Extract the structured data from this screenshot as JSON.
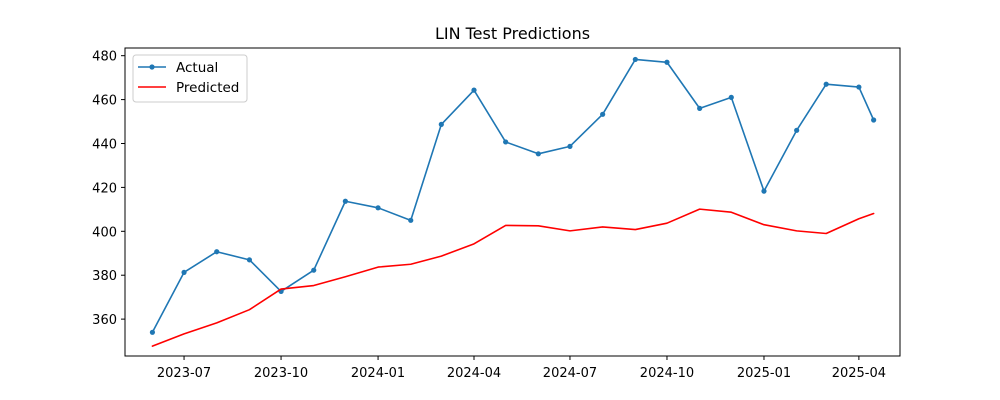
{
  "chart_data": {
    "type": "line",
    "title": "LIN Test Predictions",
    "xlabel": "",
    "ylabel": "",
    "x": [
      "2023-06-01",
      "2023-07-01",
      "2023-08-01",
      "2023-09-01",
      "2023-10-01",
      "2023-11-01",
      "2023-12-01",
      "2024-01-01",
      "2024-02-01",
      "2024-03-01",
      "2024-04-01",
      "2024-05-01",
      "2024-06-01",
      "2024-07-01",
      "2024-08-01",
      "2024-09-01",
      "2024-10-01",
      "2024-11-01",
      "2024-12-01",
      "2025-01-01",
      "2025-02-01",
      "2025-03-01",
      "2025-04-01",
      "2025-04-15"
    ],
    "series": [
      {
        "name": "Actual",
        "color": "#1f77b4",
        "marker": "dot",
        "values": [
          354.0,
          381.3,
          390.7,
          387.0,
          372.6,
          382.3,
          413.7,
          410.7,
          405.0,
          448.7,
          464.3,
          440.7,
          435.3,
          438.7,
          453.3,
          478.3,
          477.0,
          456.0,
          461.0,
          418.3,
          446.0,
          467.0,
          465.7,
          450.7
        ]
      },
      {
        "name": "Predicted",
        "color": "#ff0000",
        "marker": "none",
        "values": [
          347.7,
          353.3,
          358.3,
          364.3,
          373.7,
          375.3,
          379.3,
          383.7,
          385.0,
          388.7,
          394.3,
          402.7,
          402.5,
          400.2,
          402.0,
          400.8,
          403.7,
          410.1,
          408.7,
          403.0,
          400.2,
          399.0,
          405.7,
          408.1
        ]
      }
    ],
    "x_ticks": [
      {
        "date": "2023-07-01",
        "label": "2023-07"
      },
      {
        "date": "2023-10-01",
        "label": "2023-10"
      },
      {
        "date": "2024-01-01",
        "label": "2024-01"
      },
      {
        "date": "2024-04-01",
        "label": "2024-04"
      },
      {
        "date": "2024-07-01",
        "label": "2024-07"
      },
      {
        "date": "2024-10-01",
        "label": "2024-10"
      },
      {
        "date": "2025-01-01",
        "label": "2025-01"
      },
      {
        "date": "2025-04-01",
        "label": "2025-04"
      }
    ],
    "y_ticks": [
      360,
      380,
      400,
      420,
      440,
      460,
      480
    ],
    "xlim": [
      "2023-05-06",
      "2025-05-10"
    ],
    "ylim": [
      343.2,
      483.5
    ],
    "grid": false,
    "legend_position": "upper-left"
  }
}
